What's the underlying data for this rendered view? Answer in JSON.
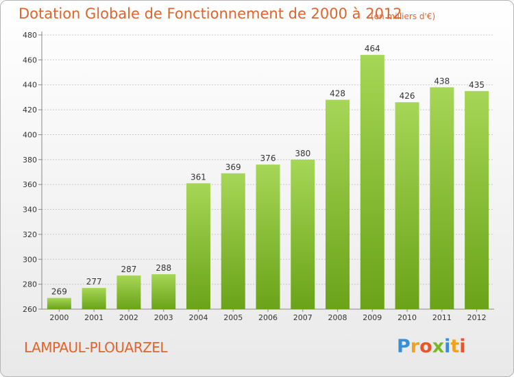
{
  "title": "Dotation Globale de Fonctionnement de 2000 à 2012",
  "subtitle": "(en milliers d'€)",
  "commune": "LAMPAUL-PLOUARZEL",
  "logo": {
    "text": "Proxiti",
    "letters": [
      {
        "char": "P",
        "color": "#3a8fd4"
      },
      {
        "char": "r",
        "color": "#f0a21c"
      },
      {
        "char": "o",
        "color": "#e9552a"
      },
      {
        "char": "x",
        "color": "#7ab828"
      },
      {
        "char": "i",
        "color": "#3a8fd4"
      },
      {
        "char": "t",
        "color": "#f0a21c"
      },
      {
        "char": "i",
        "color": "#e9552a"
      }
    ]
  },
  "colors": {
    "accent": "#e2632a",
    "bar_light": "#a6d656",
    "bar_dark": "#6aa319",
    "axis": "#888888",
    "grid": "#c8c8c8"
  },
  "chart_data": {
    "type": "bar",
    "title": "Dotation Globale de Fonctionnement de 2000 à 2012",
    "subtitle": "(en milliers d'€)",
    "categories": [
      "2000",
      "2001",
      "2002",
      "2003",
      "2004",
      "2005",
      "2006",
      "2007",
      "2008",
      "2009",
      "2010",
      "2011",
      "2012"
    ],
    "values": [
      269,
      277,
      287,
      288,
      361,
      369,
      376,
      380,
      428,
      464,
      426,
      438,
      435
    ],
    "value_labels": [
      "269",
      "277",
      "287",
      "288",
      "361",
      "369",
      "376",
      "380",
      "428",
      "464",
      "426",
      "438",
      "435"
    ],
    "ylim": [
      260,
      480
    ],
    "yticks": [
      260,
      280,
      300,
      320,
      340,
      360,
      380,
      400,
      420,
      440,
      460,
      480
    ],
    "ytick_labels": [
      "260",
      "280",
      "300",
      "320",
      "340",
      "360",
      "380",
      "400",
      "420",
      "440",
      "460",
      "480"
    ],
    "grid": true,
    "legend": "none"
  }
}
